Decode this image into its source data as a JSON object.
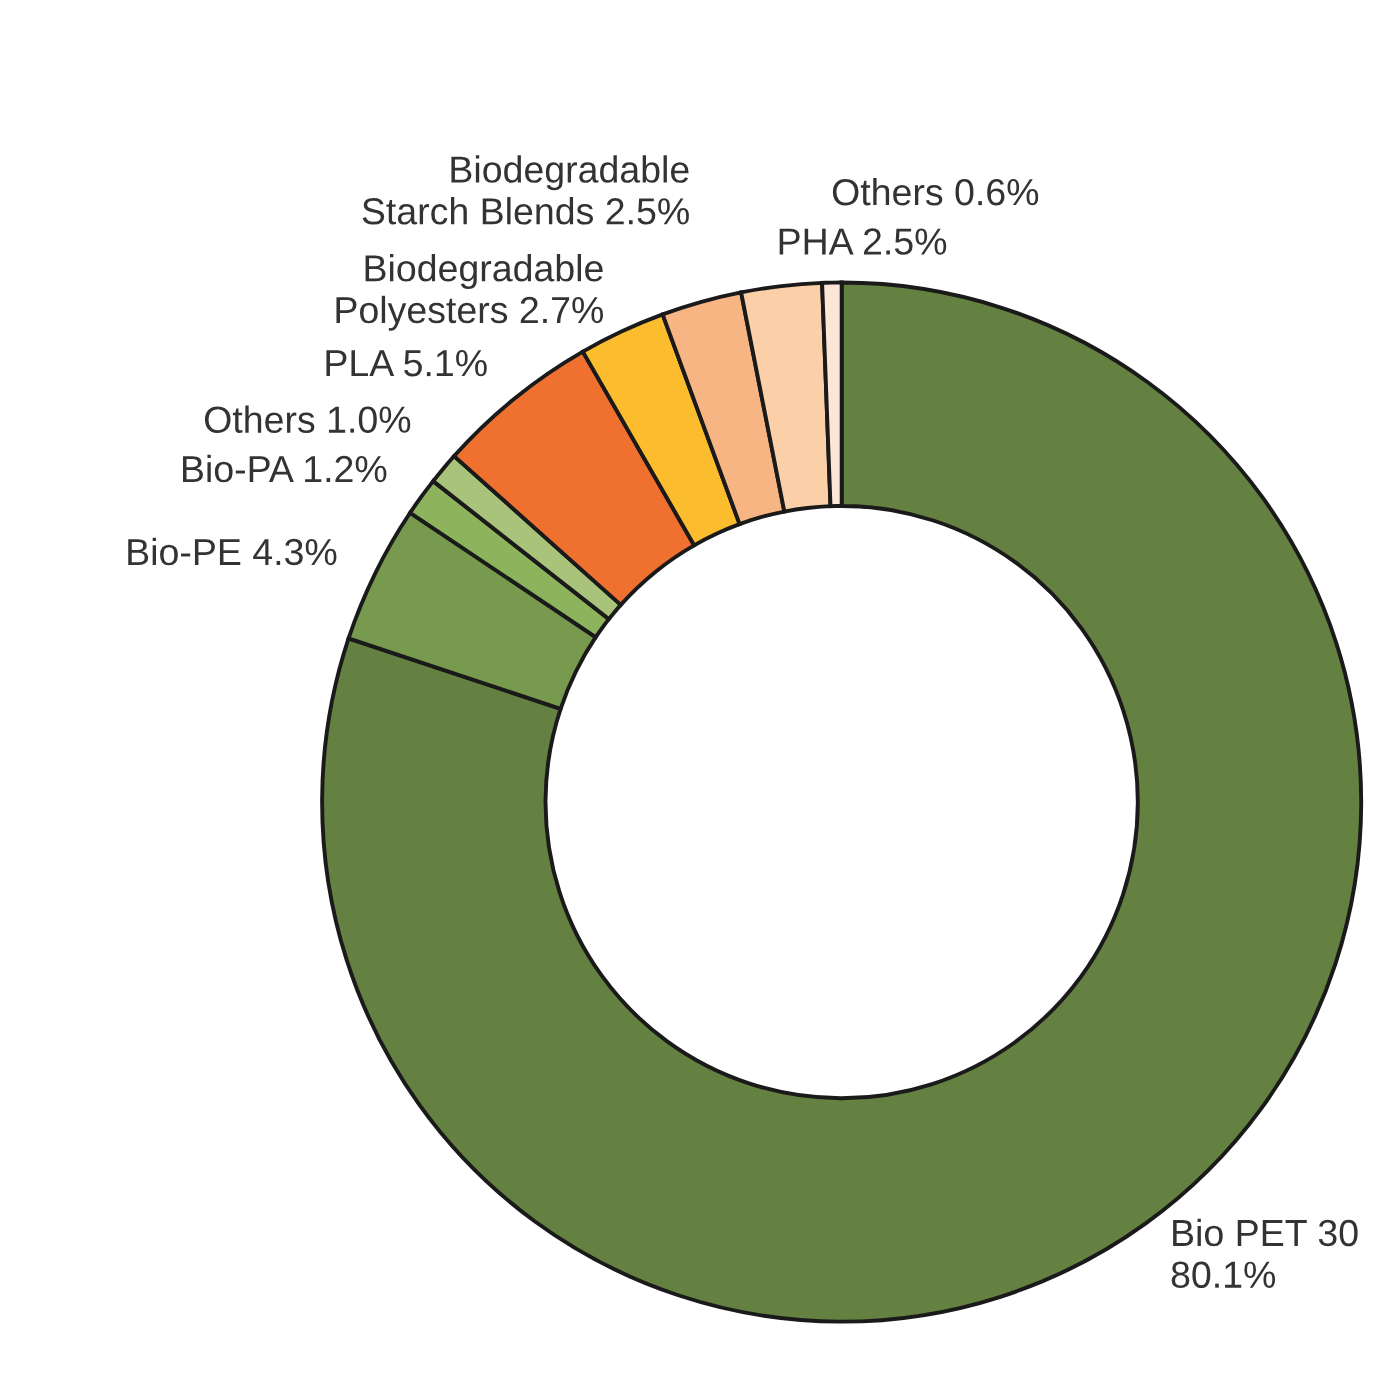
{
  "chart_data": {
    "type": "donut",
    "categories": [
      "Bio PET 30",
      "Bio-PE",
      "Bio-PA",
      "Others",
      "PLA",
      "Biodegradable\nPolyesters",
      "Biodegradable\nStarch Blends",
      "PHA",
      "Others"
    ],
    "values": [
      80.1,
      4.3,
      1.2,
      1.0,
      5.1,
      2.7,
      2.5,
      2.5,
      0.6
    ],
    "value_labels": [
      "80.1%",
      "4.3%",
      "1.2%",
      "1.0%",
      "5.1%",
      "2.7%",
      "2.5%",
      "2.5%",
      "0.6%"
    ],
    "colors": [
      "#658141",
      "#789a4e",
      "#8db35c",
      "#a9c47a",
      "#f07030",
      "#fbbd2e",
      "#f8b584",
      "#fbcfa8",
      "#fde6d6"
    ],
    "legend": false
  }
}
